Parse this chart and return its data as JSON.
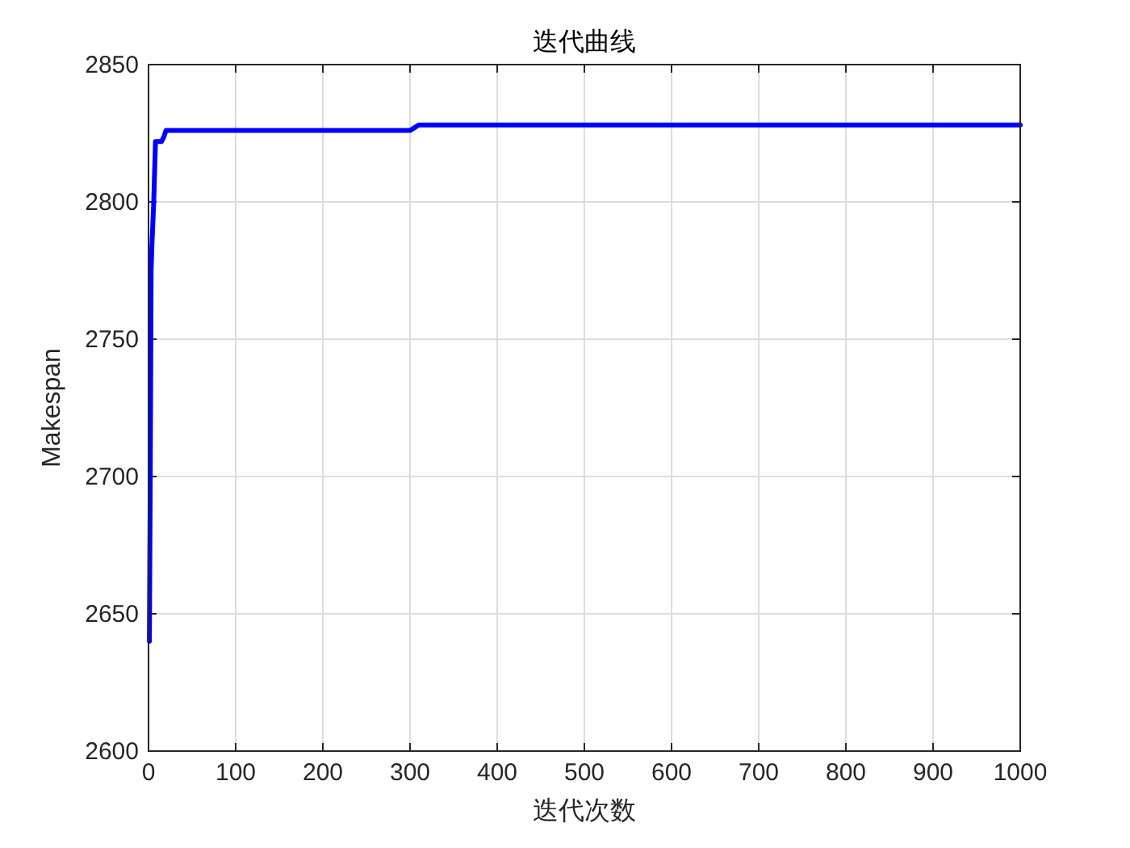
{
  "chart_data": {
    "type": "line",
    "title": "迭代曲线",
    "xlabel": "迭代次数",
    "ylabel": "Makespan",
    "series": [
      {
        "color": "#0000ff",
        "x": [
          1,
          2,
          3,
          4,
          6,
          8,
          15,
          18,
          20,
          300,
          310,
          1000
        ],
        "values": [
          2640,
          2700,
          2775,
          2785,
          2800,
          2822,
          2822,
          2824,
          2826,
          2826,
          2828,
          2828
        ]
      }
    ],
    "xlim": [
      0,
      1000
    ],
    "xticks": [
      0,
      100,
      200,
      300,
      400,
      500,
      600,
      700,
      800,
      900,
      1000
    ],
    "ylim": [
      2600,
      2850
    ],
    "yticks": [
      2600,
      2650,
      2700,
      2750,
      2800,
      2850
    ],
    "grid": true,
    "line_style": "solid"
  }
}
